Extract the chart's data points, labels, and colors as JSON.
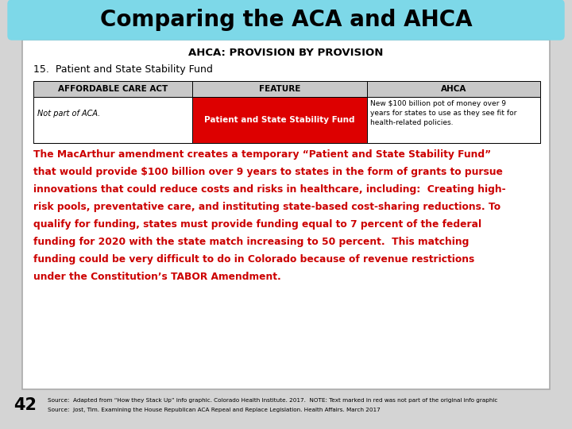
{
  "title": "Comparing the ACA and AHCA",
  "title_bg": "#7dd8e8",
  "title_color": "#000000",
  "title_fontsize": 20,
  "subtitle": "AHCA: PROVISION BY PROVISION",
  "section": "15.  Patient and State Stability Fund",
  "col_headers": [
    "AFFORDABLE CARE ACT",
    "FEATURE",
    "AHCA"
  ],
  "col1_content": "Not part of ACA.",
  "col2_content": "Patient and State Stability Fund",
  "col2_bg": "#dd0000",
  "col2_color": "#ffffff",
  "col3_content": "New $100 billion pot of money over 9\nyears for states to use as they see fit for\nhealth-related policies.",
  "header_bg": "#c8c8c8",
  "body_lines": [
    "The MacArthur amendment creates a temporary “Patient and State Stability Fund”",
    "that would provide $100 billion over 9 years to states in the form of grants to pursue",
    "innovations that could reduce costs and risks in healthcare, including:  Creating high-",
    "risk pools, preventative care, and instituting state-based cost-sharing reductions. To",
    "qualify for funding, states must provide funding equal to 7 percent of the federal",
    "funding for 2020 with the state match increasing to 50 percent.  This matching",
    "funding could be very difficult to do in Colorado because of revenue restrictions",
    "under the Constitution’s TABOR Amendment."
  ],
  "body_color": "#cc0000",
  "page_num": "42",
  "source_line1": "Source:  Adapted from “How they Stack Up” info graphic. Colorado Health Institute. 2017.  NOTE: Text marked in red was not part of the original info graphic",
  "source_line2": "Source:  Jost, Tim. Examining the House Republican ACA Repeal and Replace Legislation. Health Affairs. March 2017",
  "bg_color": "#d4d4d4",
  "box_bg": "#ffffff",
  "box_border": "#aaaaaa"
}
